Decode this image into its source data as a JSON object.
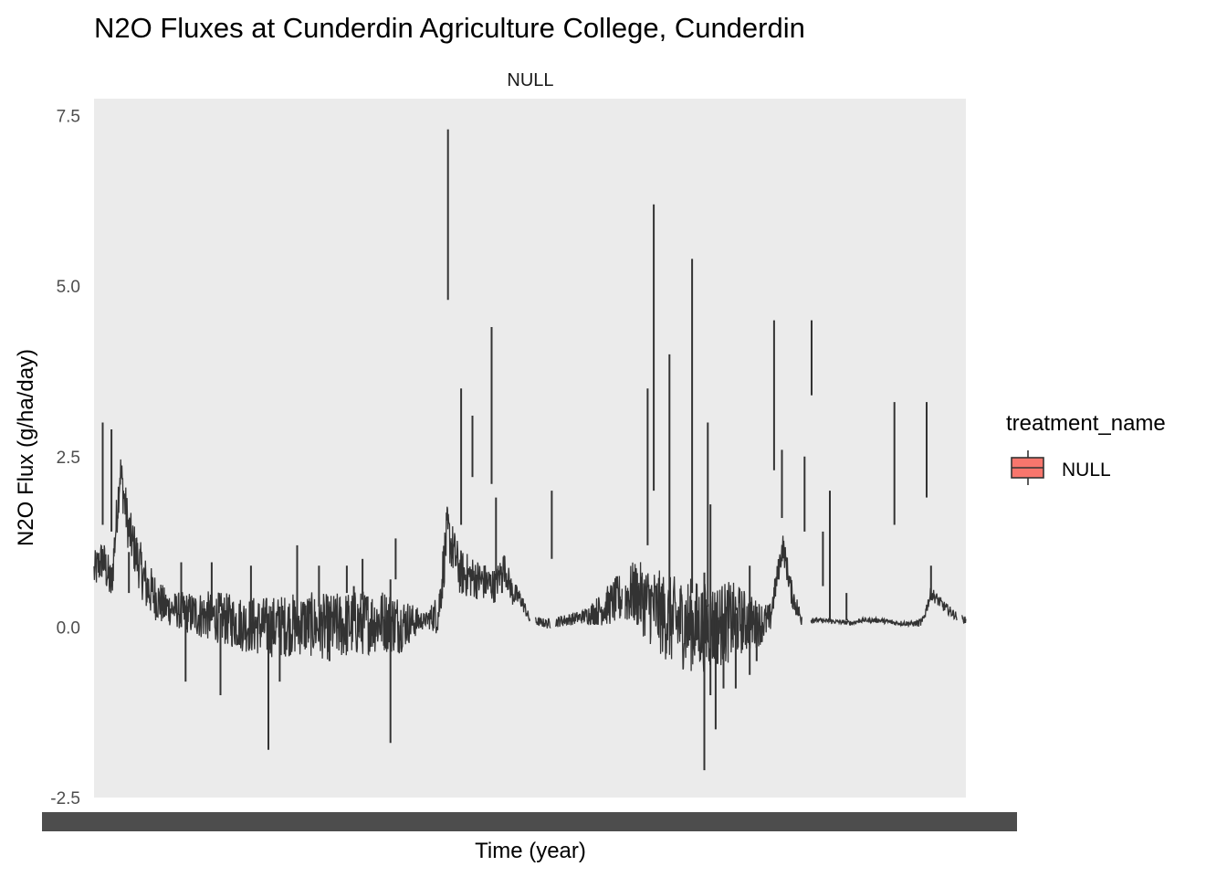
{
  "chart_data": {
    "type": "line",
    "title": "N2O Fluxes at Cunderdin Agriculture College, Cunderdin",
    "facet_label": "NULL",
    "xlabel": "Time (year)",
    "ylabel": "N2O Flux (g/ha/day)",
    "ylim": [
      -2.5,
      7.75
    ],
    "y_ticks": [
      -2.5,
      0.0,
      2.5,
      5.0,
      7.5
    ],
    "y_tick_labels": [
      "-2.5",
      "0.0",
      "2.5",
      "5.0",
      "7.5"
    ],
    "grid": false,
    "panel_background": "#ebebeb",
    "line_color": "#333333",
    "legend": {
      "title": "treatment_name",
      "position": "right",
      "entries": [
        {
          "label": "NULL",
          "color": "#f8766d"
        }
      ]
    },
    "series": [
      {
        "name": "NULL",
        "x_start": 0,
        "x_end": 1000,
        "baseline": [
          [
            0,
            0.8
          ],
          [
            10,
            1.0
          ],
          [
            20,
            0.6
          ],
          [
            30,
            2.3
          ],
          [
            40,
            1.4
          ],
          [
            60,
            0.6
          ],
          [
            80,
            0.3
          ],
          [
            110,
            0.2
          ],
          [
            140,
            0.15
          ],
          [
            170,
            0.05
          ],
          [
            200,
            0.0
          ],
          [
            240,
            0.05
          ],
          [
            270,
            0.0
          ],
          [
            300,
            0.05
          ],
          [
            330,
            0.1
          ],
          [
            350,
            0.05
          ],
          [
            380,
            0.1
          ],
          [
            395,
            0.2
          ],
          [
            405,
            1.4
          ],
          [
            420,
            0.8
          ],
          [
            440,
            0.7
          ],
          [
            460,
            0.6
          ],
          [
            470,
            0.9
          ],
          [
            480,
            0.5
          ],
          [
            490,
            0.4
          ],
          [
            500,
            0.1
          ],
          [
            520,
            0.05
          ],
          [
            540,
            0.1
          ],
          [
            560,
            0.15
          ],
          [
            580,
            0.25
          ],
          [
            600,
            0.4
          ],
          [
            620,
            0.5
          ],
          [
            640,
            0.3
          ],
          [
            660,
            0.1
          ],
          [
            680,
            0.05
          ],
          [
            700,
            0.0
          ],
          [
            720,
            0.05
          ],
          [
            740,
            0.1
          ],
          [
            760,
            0.05
          ],
          [
            775,
            0.1
          ],
          [
            790,
            1.2
          ],
          [
            800,
            0.5
          ],
          [
            810,
            0.15
          ],
          [
            830,
            0.1
          ],
          [
            850,
            0.08
          ],
          [
            870,
            0.06
          ],
          [
            880,
            0.1
          ],
          [
            900,
            0.1
          ],
          [
            920,
            0.06
          ],
          [
            940,
            0.05
          ],
          [
            950,
            0.07
          ],
          [
            960,
            0.5
          ],
          [
            975,
            0.3
          ],
          [
            990,
            0.15
          ],
          [
            1000,
            0.1
          ]
        ],
        "noise": [
          [
            0,
            0.3
          ],
          [
            60,
            0.4
          ],
          [
            90,
            0.25
          ],
          [
            120,
            0.35
          ],
          [
            200,
            0.45
          ],
          [
            290,
            0.5
          ],
          [
            350,
            0.45
          ],
          [
            380,
            0.1
          ],
          [
            400,
            0.4
          ],
          [
            440,
            0.3
          ],
          [
            480,
            0.2
          ],
          [
            500,
            0.06
          ],
          [
            560,
            0.1
          ],
          [
            590,
            0.3
          ],
          [
            640,
            0.6
          ],
          [
            680,
            0.7
          ],
          [
            730,
            0.6
          ],
          [
            780,
            0.2
          ],
          [
            800,
            0.2
          ],
          [
            830,
            0.03
          ],
          [
            940,
            0.04
          ],
          [
            960,
            0.1
          ],
          [
            1000,
            0.05
          ]
        ],
        "spikes": [
          [
            10,
            3.0,
            1.5
          ],
          [
            20,
            2.9,
            1.4
          ],
          [
            40,
            1.1,
            0.5
          ],
          [
            100,
            0.0,
            0.95
          ],
          [
            105,
            -0.8,
            0.3
          ],
          [
            135,
            0.1,
            0.95
          ],
          [
            145,
            -1.0,
            0.2
          ],
          [
            180,
            0.1,
            0.9
          ],
          [
            200,
            -1.8,
            0.2
          ],
          [
            213,
            -0.8,
            0.3
          ],
          [
            233,
            0.1,
            1.2
          ],
          [
            258,
            0.3,
            0.9
          ],
          [
            270,
            -0.5,
            0.3
          ],
          [
            290,
            0.5,
            0.9
          ],
          [
            298,
            0.2,
            0.6
          ],
          [
            308,
            0.4,
            1.0
          ],
          [
            340,
            -1.7,
            0.7
          ],
          [
            346,
            1.3,
            0.7
          ],
          [
            406,
            7.3,
            4.8
          ],
          [
            421,
            3.5,
            1.5
          ],
          [
            434,
            3.1,
            2.2
          ],
          [
            456,
            4.4,
            2.1
          ],
          [
            461,
            1.9,
            0.7
          ],
          [
            468,
            0.8,
            0.5
          ],
          [
            525,
            2.0,
            1.0
          ],
          [
            635,
            3.5,
            1.2
          ],
          [
            642,
            6.2,
            2.0
          ],
          [
            660,
            4.0,
            0.2
          ],
          [
            686,
            5.4,
            0.5
          ],
          [
            700,
            -2.1,
            0.8
          ],
          [
            704,
            0.3,
            3.0
          ],
          [
            707,
            -1.0,
            1.8
          ],
          [
            713,
            -1.5,
            0.3
          ],
          [
            722,
            -0.9,
            0.2
          ],
          [
            736,
            -0.9,
            0.2
          ],
          [
            752,
            -0.7,
            0.9
          ],
          [
            760,
            -0.5,
            0.3
          ],
          [
            780,
            4.5,
            2.3
          ],
          [
            789,
            2.6,
            1.6
          ],
          [
            815,
            2.5,
            1.4
          ],
          [
            823,
            4.5,
            3.4
          ],
          [
            836,
            1.4,
            0.6
          ],
          [
            844,
            2.0,
            0.1
          ],
          [
            863,
            0.5,
            0.1
          ],
          [
            918,
            3.3,
            1.5
          ],
          [
            955,
            3.3,
            1.9
          ],
          [
            960,
            0.9,
            0.4
          ]
        ],
        "gaps": [
          [
            500,
            506
          ],
          [
            524,
            529
          ],
          [
            606,
            609
          ],
          [
            812,
            822
          ],
          [
            990,
            995
          ]
        ]
      }
    ]
  }
}
